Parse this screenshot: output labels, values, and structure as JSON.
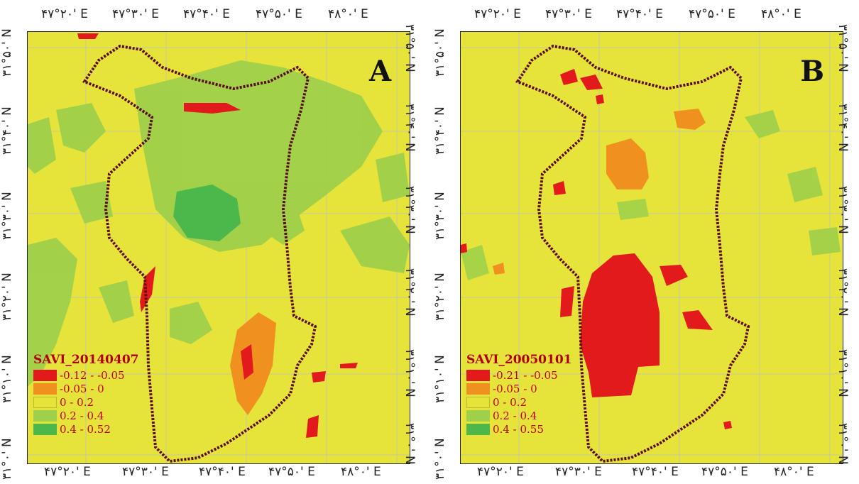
{
  "panels": [
    {
      "id": "A",
      "label": "A",
      "legend_title": "SAVI_20140407",
      "legend": [
        {
          "label": "-0.12 - -0.05",
          "color": "#e31a1c"
        },
        {
          "label": "-0.05 - 0",
          "color": "#f0901e"
        },
        {
          "label": "0 - 0.2",
          "color": "#e6e43a"
        },
        {
          "label": "0.2 - 0.4",
          "color": "#9fd04a"
        },
        {
          "label": "0.4 - 0.52",
          "color": "#4cb84c"
        }
      ],
      "top_ticks": [
        "۴۷°۲۰' E",
        "۴۷°۳۰' E",
        "۴۷°۴۰' E",
        "۴۷°۵۰' E",
        "۴۸°۰' E"
      ],
      "bottom_ticks": [
        "۴۷°۲۰' E",
        "۴۷°۳۰' E",
        "۴۷°۴۰' E",
        "۴۷°۵۰' E",
        "۴۸°۰' E"
      ],
      "left_ticks": [
        "۳۱°۵۰' N",
        "۳۱°۴۰' N",
        "۳۱°۳۰' N",
        "۳۱°۲۰' N",
        "۳۱°۱۰' N",
        "۳۱°۰' N"
      ],
      "right_ticks": [
        "۳۱°۵۰' N",
        "۳۱°۴۰' N",
        "۳۱°۳۰' N",
        "۳۱°۲۰' N",
        "۳۱°۱۰' N",
        "۳۱°۰' N"
      ]
    },
    {
      "id": "B",
      "label": "B",
      "legend_title": "SAVI_20050101",
      "legend": [
        {
          "label": "-0.21 - -0.05",
          "color": "#e31a1c"
        },
        {
          "label": "-0.05 - 0",
          "color": "#f0901e"
        },
        {
          "label": "0 - 0.2",
          "color": "#e6e43a"
        },
        {
          "label": "0.2 - 0.4",
          "color": "#9fd04a"
        },
        {
          "label": "0.4 - 0.55",
          "color": "#4cb84c"
        }
      ],
      "top_ticks": [
        "۴۷°۲۰' E",
        "۴۷°۳۰' E",
        "۴۷°۴۰' E",
        "۴۷°۵۰' E",
        "۴۸°۰' E"
      ],
      "bottom_ticks": [
        "۴۷°۲۰' E",
        "۴۷°۳۰' E",
        "۴۷°۴۰' E",
        "۴۷°۵۰' E",
        "۴۸°۰' E"
      ],
      "left_ticks": [
        "۳۱°۵۰' N",
        "۳۱°۴۰' N",
        "۳۱°۳۰' N",
        "۳۱°۲۰' N",
        "۳۱°۱۰' N",
        "۳۱°۰' N"
      ],
      "right_ticks": [
        "۳۱°۵۰' N",
        "۳۱°۴۰' N",
        "۳۱°۳۰' N",
        "۳۱°۲۰' N",
        "۳۱°۱۰' N",
        "۳۱°۰' N"
      ]
    }
  ],
  "colors": {
    "background": "#e6e43a",
    "boundary": "#5a0f12",
    "grid": "#c8c8a0"
  }
}
